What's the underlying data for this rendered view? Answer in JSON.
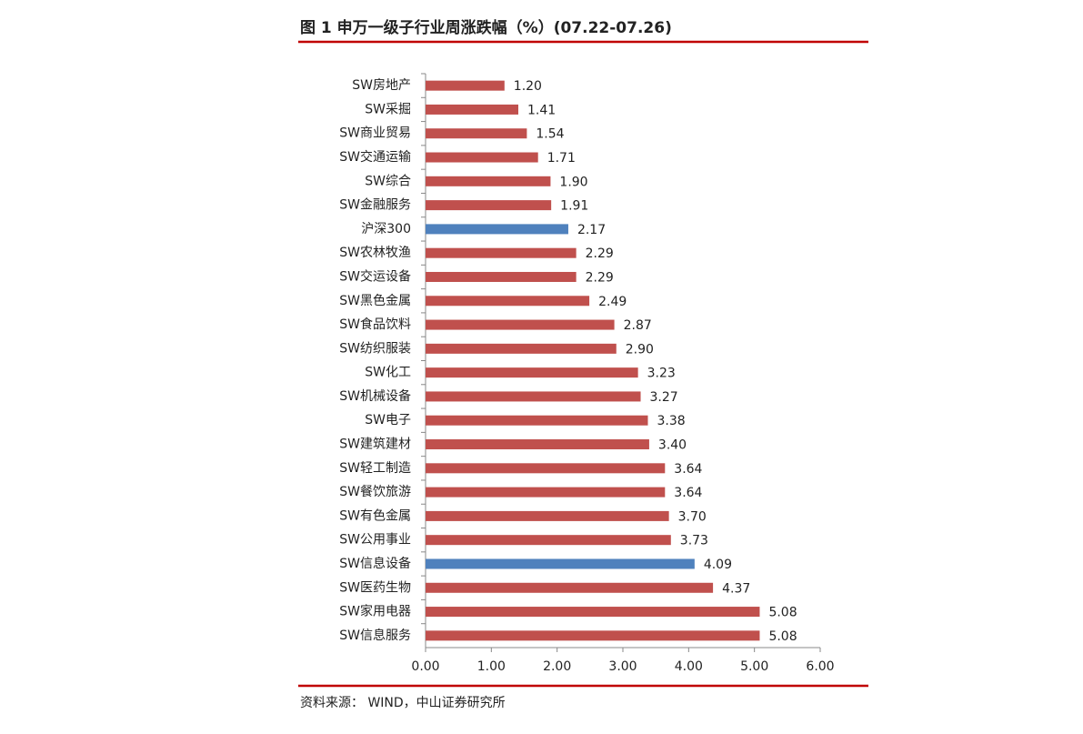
{
  "chart_data": {
    "type": "hbar",
    "title": "图 1  申万一级子行业周涨跌幅（%）(07.22-07.26)",
    "source": "资料来源：  WIND，中山证券研究所",
    "categories": [
      "SW房地产",
      "SW采掘",
      "SW商业贸易",
      "SW交通运输",
      "SW综合",
      "SW金融服务",
      "沪深300",
      "SW农林牧渔",
      "SW交运设备",
      "SW黑色金属",
      "SW食品饮料",
      "SW纺织服装",
      "SW化工",
      "SW机械设备",
      "SW电子",
      "SW建筑建材",
      "SW轻工制造",
      "SW餐饮旅游",
      "SW有色金属",
      "SW公用事业",
      "SW信息设备",
      "SW医药生物",
      "SW家用电器",
      "SW信息服务"
    ],
    "values": [
      1.2,
      1.41,
      1.54,
      1.71,
      1.9,
      1.91,
      2.17,
      2.29,
      2.29,
      2.49,
      2.87,
      2.9,
      3.23,
      3.27,
      3.38,
      3.4,
      3.64,
      3.64,
      3.7,
      3.73,
      4.09,
      4.37,
      5.08,
      5.08
    ],
    "value_labels": [
      "1.20",
      "1.41",
      "1.54",
      "1.71",
      "1.90",
      "1.91",
      "2.17",
      "2.29",
      "2.29",
      "2.49",
      "2.87",
      "2.90",
      "3.23",
      "3.27",
      "3.38",
      "3.40",
      "3.64",
      "3.64",
      "3.70",
      "3.73",
      "4.09",
      "4.37",
      "5.08",
      "5.08"
    ],
    "colors": [
      "#c0504d",
      "#c0504d",
      "#c0504d",
      "#c0504d",
      "#c0504d",
      "#c0504d",
      "#4f81bd",
      "#c0504d",
      "#c0504d",
      "#c0504d",
      "#c0504d",
      "#c0504d",
      "#c0504d",
      "#c0504d",
      "#c0504d",
      "#c0504d",
      "#c0504d",
      "#c0504d",
      "#c0504d",
      "#c0504d",
      "#4f81bd",
      "#c0504d",
      "#c0504d",
      "#c0504d"
    ],
    "xlim": [
      0,
      6
    ],
    "xticks": [
      {
        "value": 0,
        "label": "0.00"
      },
      {
        "value": 1,
        "label": "1.00"
      },
      {
        "value": 2,
        "label": "2.00"
      },
      {
        "value": 3,
        "label": "3.00"
      },
      {
        "value": 4,
        "label": "4.00"
      },
      {
        "value": 5,
        "label": "5.00"
      },
      {
        "value": 6,
        "label": "6.00"
      }
    ]
  }
}
